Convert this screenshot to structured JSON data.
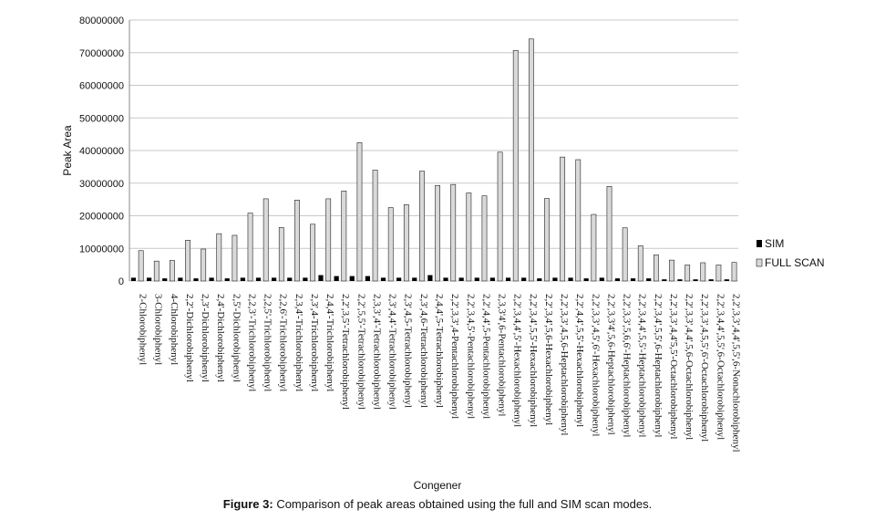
{
  "caption": {
    "label": "Figure 3:",
    "text": "Comparison of peak areas obtained using the full and SIM scan modes."
  },
  "chart_data": {
    "type": "bar",
    "xlabel": "Congener",
    "ylabel": "Peak Area",
    "ylim": [
      0,
      80000000
    ],
    "yticks": [
      "0",
      "10000000",
      "20000000",
      "30000000",
      "40000000",
      "50000000",
      "60000000",
      "70000000",
      "80000000"
    ],
    "grid": true,
    "legend_position": "right",
    "categories": [
      "2-Chlorobiphenyl",
      "3-Chlorobiphenyl",
      "4-Chlorobiphenyl",
      "2,2'-Dichlorobiphenyl",
      "2,3'-Dichlorobiphenyl",
      "2,4'-Dichlorobiphenyl",
      "2,5'-Dichlorobiphenyl",
      "2,2,3'-Trichlorobiphenyl",
      "2,2,5'-Trichlorobiphenyl",
      "2,2,6'-Trichlorobiphenyl",
      "2,3,4'-Trichlorobiphenyl",
      "2,3',4-Trichlorobiphenyl",
      "2,4,4'-Trichlorobiphenyl",
      "2,2',3,5'-Tetrachlorobiphenyl",
      "2,2',5,5'-Tetrachlorobiphenyl",
      "2,3,3',4'-Tetrachlorobiphenyl",
      "2,3',4,4'-Tetrachlorobiphenyl",
      "2,3',4,5-Tetrachlorobiphenyl",
      "2,3',4,6-Tetrachlorobiphenyl",
      "2,4,4',5-Tetrachlorobiphenyl",
      "2,2',3,3',4-Pentachlorobiphenyl",
      "2,2',3,4,5'-Pentachlorobiphenyl",
      "2,2',4,4',5-Pentachlorobiphenyl",
      "2,3,3'4',6-Pentachlorobiphenyl",
      "2,2',3,4,4',5'-Hexachlorobiphenyl",
      "2,2',3,4',5,5'-Hexachlorobiphenyl",
      "2,2',3,4',5,6-Hexachlorobiphenyl",
      "2,2',3,3',4,5,6-Heptachlorobiphenyl",
      "2,2',4,4',5,5'-Hexachlorobiphenyl",
      "2,2',3,3',4,5',6'-Hexachlorobiphenyl",
      "2,2',3,3'4',5,6-Heptachlorobiphenyl",
      "2,2',3,3',5,6,6'-Heptachlorobiphenyl",
      "2,2',3,4,4',5,5'-Heptachlorobiphenyl",
      "2,2',3,4',5,5',6-Heptachlorobiphenyl",
      "2,2',3,3',4,4'5,5'-Octachlorobiphenyl",
      "2,2',3,3',4,4',5,6-Octachlorobiphenyl",
      "2,2',3,3',4,5,5',6'-Octachlorobiphenyl",
      "2,2',3,4,4',5,5',6-Octachlorobiphenyl",
      "2,2',3,3',4,4',5,5',6-Nonachlorobiphenyl"
    ],
    "series": [
      {
        "name": "SIM",
        "color": "#000000",
        "values": [
          1000000,
          1000000,
          800000,
          1000000,
          800000,
          1000000,
          800000,
          1000000,
          1000000,
          1000000,
          1000000,
          1000000,
          1800000,
          1500000,
          1500000,
          1500000,
          1000000,
          1000000,
          1000000,
          1800000,
          1000000,
          1000000,
          1000000,
          1000000,
          1000000,
          1000000,
          800000,
          1000000,
          1000000,
          800000,
          1000000,
          800000,
          800000,
          800000,
          500000,
          500000,
          500000,
          500000,
          500000
        ]
      },
      {
        "name": "FULL SCAN",
        "color": "#d9d9d9",
        "values": [
          9300000,
          6100000,
          6300000,
          12500000,
          9800000,
          14500000,
          14000000,
          20800000,
          25200000,
          16400000,
          24800000,
          17400000,
          25200000,
          27600000,
          42400000,
          34000000,
          22500000,
          23400000,
          33700000,
          29300000,
          29600000,
          27000000,
          26100000,
          39500000,
          70700000,
          74200000,
          25300000,
          38000000,
          37200000,
          20400000,
          29000000,
          16300000,
          10800000,
          8000000,
          6400000,
          4900000,
          5600000,
          4900000,
          5700000
        ]
      }
    ]
  }
}
